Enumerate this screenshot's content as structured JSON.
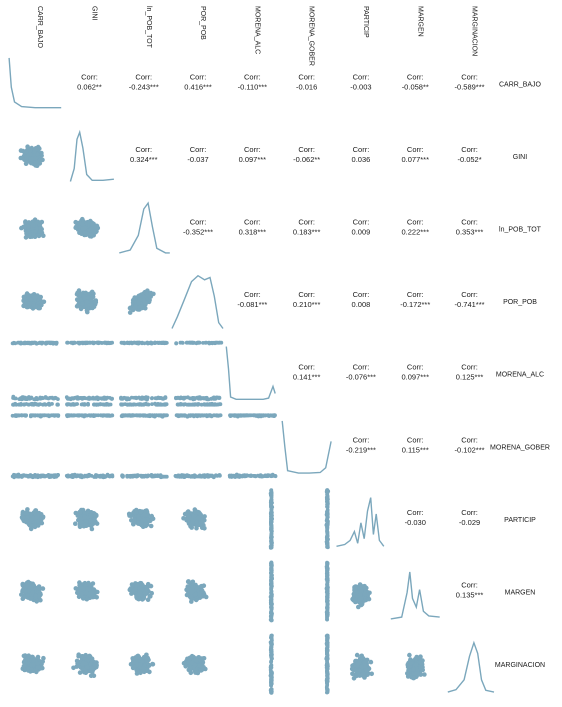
{
  "chart_data": {
    "type": "scatter",
    "title": "",
    "variables": [
      "CARR_BAJO",
      "GINI",
      "ln_POB_TOT",
      "POR_POB",
      "MORENA_ALC",
      "MORENA_GOBER",
      "PARTICIP",
      "MARGEN",
      "MARGINACION"
    ],
    "corr_prefix": "Corr:",
    "correlations": [
      {
        "row": 0,
        "col": 1,
        "value": "0.062**"
      },
      {
        "row": 0,
        "col": 2,
        "value": "-0.243***"
      },
      {
        "row": 0,
        "col": 3,
        "value": "0.416***"
      },
      {
        "row": 0,
        "col": 4,
        "value": "-0.110***"
      },
      {
        "row": 0,
        "col": 5,
        "value": "-0.016"
      },
      {
        "row": 0,
        "col": 6,
        "value": "-0.003"
      },
      {
        "row": 0,
        "col": 7,
        "value": "-0.058**"
      },
      {
        "row": 0,
        "col": 8,
        "value": "-0.589***"
      },
      {
        "row": 1,
        "col": 2,
        "value": "0.324***"
      },
      {
        "row": 1,
        "col": 3,
        "value": "-0.037"
      },
      {
        "row": 1,
        "col": 4,
        "value": "0.097***"
      },
      {
        "row": 1,
        "col": 5,
        "value": "-0.062**"
      },
      {
        "row": 1,
        "col": 6,
        "value": "0.036"
      },
      {
        "row": 1,
        "col": 7,
        "value": "0.077***"
      },
      {
        "row": 1,
        "col": 8,
        "value": "-0.052*"
      },
      {
        "row": 2,
        "col": 3,
        "value": "-0.352***"
      },
      {
        "row": 2,
        "col": 4,
        "value": "0.318***"
      },
      {
        "row": 2,
        "col": 5,
        "value": "0.183***"
      },
      {
        "row": 2,
        "col": 6,
        "value": "0.009"
      },
      {
        "row": 2,
        "col": 7,
        "value": "0.222***"
      },
      {
        "row": 2,
        "col": 8,
        "value": "0.353***"
      },
      {
        "row": 3,
        "col": 4,
        "value": "-0.081***"
      },
      {
        "row": 3,
        "col": 5,
        "value": "0.210***"
      },
      {
        "row": 3,
        "col": 6,
        "value": "0.008"
      },
      {
        "row": 3,
        "col": 7,
        "value": "-0.172***"
      },
      {
        "row": 3,
        "col": 8,
        "value": "-0.741***"
      },
      {
        "row": 4,
        "col": 5,
        "value": "0.141***"
      },
      {
        "row": 4,
        "col": 6,
        "value": "-0.076***"
      },
      {
        "row": 4,
        "col": 7,
        "value": "0.097***"
      },
      {
        "row": 4,
        "col": 8,
        "value": "0.125***"
      },
      {
        "row": 5,
        "col": 6,
        "value": "-0.219***"
      },
      {
        "row": 5,
        "col": 7,
        "value": "0.115***"
      },
      {
        "row": 5,
        "col": 8,
        "value": "-0.102***"
      },
      {
        "row": 6,
        "col": 7,
        "value": "-0.030"
      },
      {
        "row": 6,
        "col": 8,
        "value": "-0.029"
      },
      {
        "row": 7,
        "col": 8,
        "value": "0.135***"
      }
    ],
    "diagonal": "density",
    "lower": "scatter",
    "upper": "correlation",
    "point_color": "#7ba7bc",
    "line_color": "#7ba7bc",
    "text_color": "#1a1a1a",
    "background": "#ffffff"
  }
}
